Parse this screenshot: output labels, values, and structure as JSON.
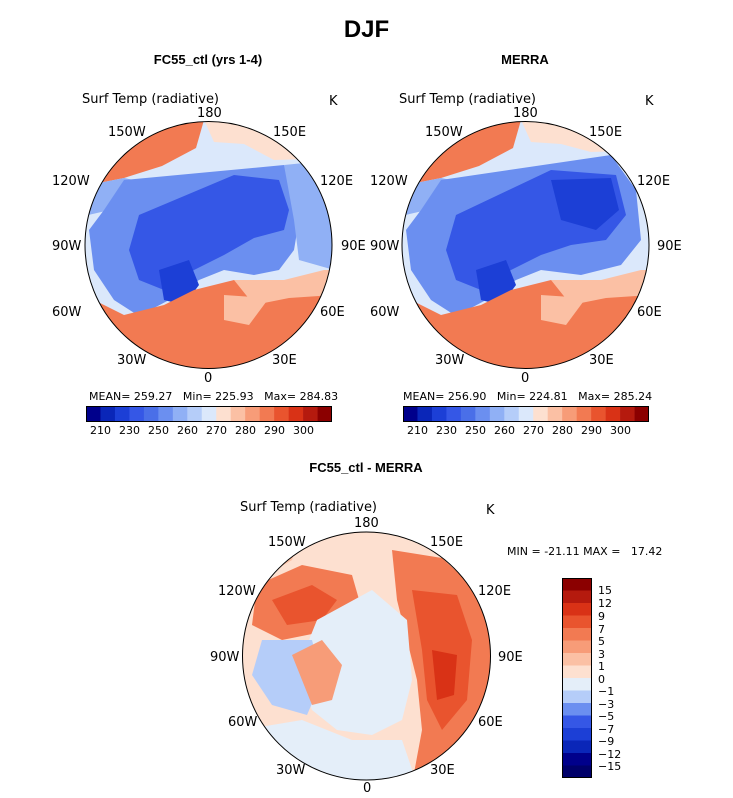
{
  "title": "DJF",
  "chart_data": [
    {
      "type": "heatmap",
      "projection": "north polar stereographic",
      "title": "FC55_ctl (yrs 1-4)",
      "variable": "Surf Temp (radiative)",
      "units": "K",
      "lon_labels": [
        "180",
        "150E",
        "120E",
        "90E",
        "60E",
        "30E",
        "0",
        "30W",
        "60W",
        "90W",
        "120W",
        "150W"
      ],
      "stats": {
        "mean": "259.27",
        "min": "225.93",
        "max": "284.83"
      },
      "stats_labels": {
        "mean": "MEAN=",
        "min": "Min=",
        "max": "Max="
      },
      "colorbar_ticks": [
        "210",
        "230",
        "250",
        "260",
        "270",
        "280",
        "290",
        "300"
      ],
      "colorbar_levels": [
        200,
        210,
        220,
        230,
        240,
        250,
        255,
        260,
        265,
        270,
        275,
        280,
        285,
        290,
        295,
        300,
        305
      ],
      "colorbar_colors": [
        "#00008b",
        "#0a26b8",
        "#1c3fd6",
        "#3557e6",
        "#4a6fe8",
        "#6b8ff0",
        "#90b0f5",
        "#b5cdf9",
        "#dbe8fb",
        "#fde0d0",
        "#fbc0a4",
        "#f79c78",
        "#f27a52",
        "#e9542e",
        "#d93216",
        "#b51a0e",
        "#8b0000"
      ],
      "field": [
        {
          "level": 285,
          "color": "#f27a52"
        },
        {
          "level": 275,
          "color": "#fbc0a4"
        },
        {
          "level": 265,
          "color": "#dbe8fb"
        },
        {
          "level": 255,
          "color": "#90b0f5"
        },
        {
          "level": 245,
          "color": "#6b8ff0"
        },
        {
          "level": 235,
          "color": "#3557e6"
        },
        {
          "level": 228,
          "color": "#1c3fd6"
        }
      ]
    },
    {
      "type": "heatmap",
      "projection": "north polar stereographic",
      "title": "MERRA",
      "variable": "Surf Temp (radiative)",
      "units": "K",
      "lon_labels": [
        "180",
        "150E",
        "120E",
        "90E",
        "60E",
        "30E",
        "0",
        "30W",
        "60W",
        "90W",
        "120W",
        "150W"
      ],
      "stats": {
        "mean": "256.90",
        "min": "224.81",
        "max": "285.24"
      },
      "stats_labels": {
        "mean": "MEAN=",
        "min": "Min=",
        "max": "Max="
      },
      "colorbar_ticks": [
        "210",
        "230",
        "250",
        "260",
        "270",
        "280",
        "290",
        "300"
      ],
      "colorbar_levels": [
        200,
        210,
        220,
        230,
        240,
        250,
        255,
        260,
        265,
        270,
        275,
        280,
        285,
        290,
        295,
        300,
        305
      ],
      "colorbar_colors": [
        "#00008b",
        "#0a26b8",
        "#1c3fd6",
        "#3557e6",
        "#4a6fe8",
        "#6b8ff0",
        "#90b0f5",
        "#b5cdf9",
        "#dbe8fb",
        "#fde0d0",
        "#fbc0a4",
        "#f79c78",
        "#f27a52",
        "#e9542e",
        "#d93216",
        "#b51a0e",
        "#8b0000"
      ],
      "field": [
        {
          "level": 285,
          "color": "#f27a52"
        },
        {
          "level": 275,
          "color": "#fbc0a4"
        },
        {
          "level": 265,
          "color": "#dbe8fb"
        },
        {
          "level": 255,
          "color": "#90b0f5"
        },
        {
          "level": 245,
          "color": "#4a6fe8"
        },
        {
          "level": 235,
          "color": "#3557e6"
        },
        {
          "level": 227,
          "color": "#1c3fd6"
        }
      ]
    },
    {
      "type": "heatmap",
      "projection": "north polar stereographic",
      "title": "FC55_ctl - MERRA",
      "variable": "Surf Temp (radiative)",
      "units": "K",
      "lon_labels": [
        "180",
        "150E",
        "120E",
        "90E",
        "60E",
        "30E",
        "0",
        "30W",
        "60W",
        "90W",
        "120W",
        "150W"
      ],
      "stats_text": {
        "min_label": "MIN =",
        "min": "-21.11",
        "max_label": "MAX =",
        "max": "17.42"
      },
      "colorbar_ticks": [
        "15",
        "12",
        "9",
        "7",
        "5",
        "3",
        "1",
        "0",
        "−1",
        "−3",
        "−5",
        "−7",
        "−9",
        "−12",
        "−15"
      ],
      "colorbar_colors": [
        "#8b0000",
        "#b51a0e",
        "#d93216",
        "#e9542e",
        "#f27a52",
        "#f79c78",
        "#fbc0a4",
        "#fde0d0",
        "#e4eef9",
        "#b5cdf9",
        "#6b8ff0",
        "#3557e6",
        "#1c3fd6",
        "#0a26b8",
        "#00008b",
        "#00006a"
      ],
      "field": [
        {
          "level": 0.5,
          "color": "#fde0d0"
        },
        {
          "level": -0.5,
          "color": "#e4eef9"
        },
        {
          "level": 2,
          "color": "#fbc0a4"
        },
        {
          "level": 5,
          "color": "#f27a52"
        },
        {
          "level": 7,
          "color": "#e9542e"
        },
        {
          "level": 9,
          "color": "#d93216"
        },
        {
          "level": -3,
          "color": "#b5cdf9"
        }
      ]
    }
  ]
}
